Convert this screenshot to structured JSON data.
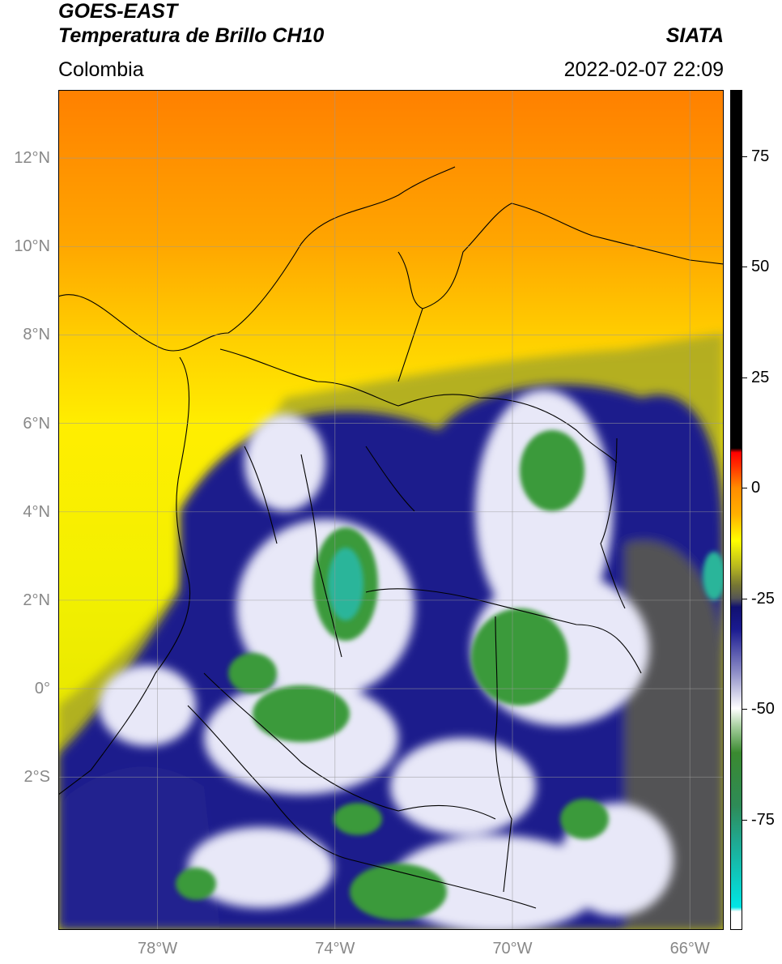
{
  "header": {
    "satellite": "GOES-EAST",
    "product": "Temperatura de Brillo CH10",
    "region": "Colombia",
    "brand": "SIATA",
    "datetime": "2022-02-07 22:09"
  },
  "axes": {
    "lat_ticks": [
      {
        "label": "12°N",
        "value": 12
      },
      {
        "label": "10°N",
        "value": 10
      },
      {
        "label": "8°N",
        "value": 8
      },
      {
        "label": "6°N",
        "value": 6
      },
      {
        "label": "4°N",
        "value": 4
      },
      {
        "label": "2°N",
        "value": 2
      },
      {
        "label": "0°",
        "value": 0
      },
      {
        "label": "2°S",
        "value": -2
      }
    ],
    "lon_ticks": [
      {
        "label": "78°W",
        "value": -78
      },
      {
        "label": "74°W",
        "value": -74
      },
      {
        "label": "70°W",
        "value": -70
      },
      {
        "label": "66°W",
        "value": -66
      }
    ],
    "lat_range": [
      -5,
      14
    ],
    "lon_range": [
      -80,
      -65
    ],
    "grid": true
  },
  "colorbar": {
    "ticks": [
      {
        "label": "75",
        "value": 75
      },
      {
        "label": "50",
        "value": 50
      },
      {
        "label": "25",
        "value": 25
      },
      {
        "label": "0",
        "value": 0
      },
      {
        "label": "-25",
        "value": -25
      },
      {
        "label": "-50",
        "value": -50
      },
      {
        "label": "-75",
        "value": -75
      }
    ],
    "range": [
      -100,
      90
    ],
    "stops": [
      {
        "value": -100,
        "color": "#ffffff"
      },
      {
        "value": -96,
        "color": "#ffffff"
      },
      {
        "value": -95,
        "color": "#00e5e5"
      },
      {
        "value": -80,
        "color": "#20a890"
      },
      {
        "value": -72,
        "color": "#2e8b57"
      },
      {
        "value": -60,
        "color": "#3a8a30"
      },
      {
        "value": -54,
        "color": "#a8d0a0"
      },
      {
        "value": -50,
        "color": "#ffffff"
      },
      {
        "value": -42,
        "color": "#9090c8"
      },
      {
        "value": -32,
        "color": "#1a1a90"
      },
      {
        "value": -27,
        "color": "#101070"
      },
      {
        "value": -25,
        "color": "#555555"
      },
      {
        "value": -22,
        "color": "#777733"
      },
      {
        "value": -18,
        "color": "#b5b520"
      },
      {
        "value": -12,
        "color": "#ffff00"
      },
      {
        "value": -6,
        "color": "#ffb000"
      },
      {
        "value": 0,
        "color": "#ff8c00"
      },
      {
        "value": 5,
        "color": "#ff3000"
      },
      {
        "value": 8,
        "color": "#ff0000"
      },
      {
        "value": 9,
        "color": "#000000"
      },
      {
        "value": 90,
        "color": "#000000"
      }
    ]
  },
  "map": {
    "background_top": "#ff8c1a",
    "background_mid": "#ffe600",
    "cloud_dark": "#1a1a8a",
    "cloud_white": "#f0f0ff",
    "cloud_green": "#3c9a3c",
    "cloud_teal": "#2ab59a",
    "border_color": "#000000"
  }
}
